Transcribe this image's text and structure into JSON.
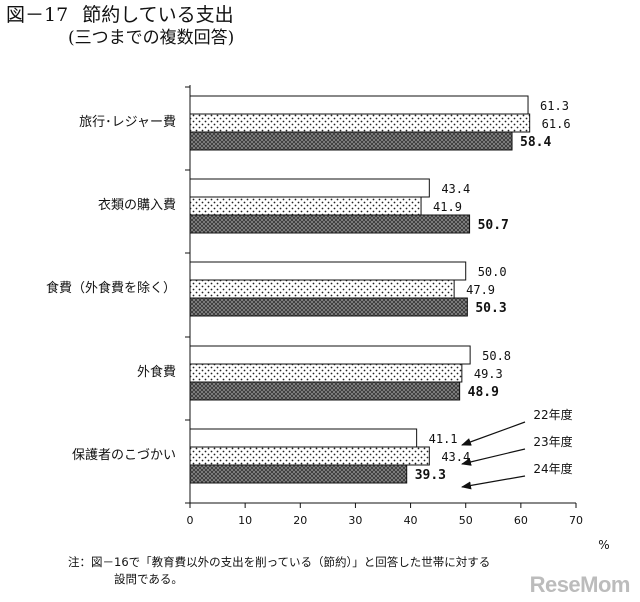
{
  "figure": {
    "number": "図－17",
    "title": "節約している支出",
    "subtitle": "(三つまでの複数回答)"
  },
  "chart_data": {
    "type": "bar",
    "orientation": "horizontal",
    "categories": [
      "旅行･レジャー費",
      "衣類の購入費",
      "食費（外食費を除く）",
      "外食費",
      "保護者のこづかい"
    ],
    "series": [
      {
        "name": "22年度",
        "values": [
          61.3,
          43.4,
          50.0,
          50.8,
          41.1
        ],
        "fill": "white"
      },
      {
        "name": "23年度",
        "values": [
          61.6,
          41.9,
          47.9,
          49.3,
          43.4
        ],
        "fill": "dots"
      },
      {
        "name": "24年度",
        "values": [
          58.4,
          50.7,
          50.3,
          48.9,
          39.3
        ],
        "fill": "crosshatch"
      }
    ],
    "value_labels": [
      [
        "61.3",
        "43.4",
        "50.0",
        "50.8",
        "41.1"
      ],
      [
        "61.6",
        "41.9",
        "47.9",
        "49.3",
        "43.4"
      ],
      [
        "58.4",
        "50.7",
        "50.3",
        "48.9",
        "39.3"
      ]
    ],
    "x_ticks": [
      "0",
      "10",
      "20",
      "30",
      "40",
      "50",
      "60",
      "70"
    ],
    "xlim": [
      0,
      70
    ],
    "unit": "%",
    "legend_position": "right of last category, with arrows",
    "grid": false
  },
  "note": {
    "line1": "注：図－16で「教育費以外の支出を削っている（節約）」と回答した世帯に対する",
    "line2": "設問である。"
  },
  "watermark": "ReseMom"
}
